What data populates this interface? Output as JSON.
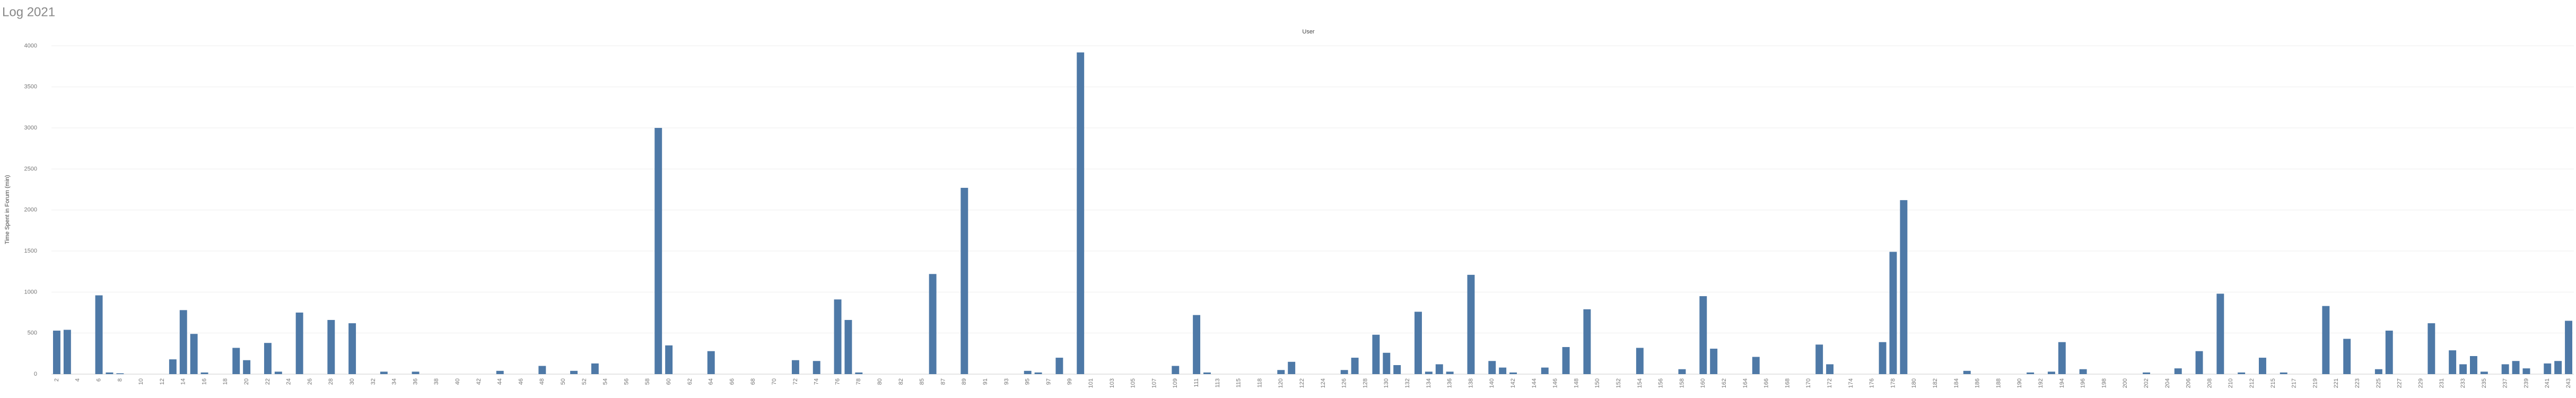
{
  "chart_data": {
    "type": "bar",
    "title": "Log 2021",
    "subtitle": "User",
    "y_label": "Time Spent in Forum (min)",
    "color": "#4e79a7",
    "categories": [
      "2",
      null,
      "4",
      null,
      "6",
      null,
      "8",
      null,
      "10",
      null,
      "12",
      null,
      "14",
      null,
      "16",
      null,
      "18",
      null,
      "20",
      null,
      "22",
      null,
      "24",
      null,
      "26",
      null,
      "28",
      null,
      "30",
      null,
      "32",
      null,
      "34",
      null,
      "36",
      null,
      "38",
      null,
      "40",
      null,
      "42",
      null,
      "44",
      null,
      "46",
      null,
      "48",
      null,
      "50",
      null,
      "52",
      null,
      "54",
      null,
      "56",
      null,
      "58",
      null,
      "60",
      null,
      "62",
      null,
      "64",
      null,
      "66",
      null,
      "68",
      null,
      "70",
      null,
      "72",
      null,
      "74",
      null,
      "76",
      null,
      "78",
      null,
      "80",
      null,
      "82",
      null,
      "85",
      null,
      "87",
      null,
      "89",
      null,
      "91",
      null,
      "93",
      null,
      "95",
      null,
      "97",
      null,
      "99",
      null,
      "101",
      null,
      "103",
      null,
      "105",
      null,
      "107",
      null,
      "109",
      null,
      "111",
      null,
      "113",
      null,
      "115",
      null,
      "118",
      null,
      "120",
      null,
      "122",
      null,
      "124",
      null,
      "126",
      null,
      "128",
      null,
      "130",
      null,
      "132",
      null,
      "134",
      null,
      "136",
      null,
      "138",
      null,
      "140",
      null,
      "142",
      null,
      "144",
      null,
      "146",
      null,
      "148",
      null,
      "150",
      null,
      "152",
      null,
      "154",
      null,
      "156",
      null,
      "158",
      null,
      "160",
      null,
      "162",
      null,
      "164",
      null,
      "166",
      null,
      "168",
      null,
      "170",
      null,
      "172",
      null,
      "174",
      null,
      "176",
      null,
      "178",
      null,
      "180",
      null,
      "182",
      null,
      "184",
      null,
      "186",
      null,
      "188",
      null,
      "190",
      null,
      "192",
      null,
      "194",
      null,
      "196",
      null,
      "198",
      null,
      "200",
      null,
      "202",
      null,
      "204",
      null,
      "206",
      null,
      "208",
      null,
      "210",
      null,
      "212",
      null,
      "215",
      null,
      "217",
      null,
      "219",
      null,
      "221",
      null,
      "223",
      null,
      "225",
      null,
      "227",
      null,
      "229",
      null,
      "231",
      null,
      "233",
      null,
      "235",
      null,
      "237",
      null,
      "239",
      null,
      "241",
      null,
      "243"
    ],
    "values": [
      530,
      540,
      0,
      0,
      960,
      20,
      10,
      0,
      0,
      0,
      0,
      180,
      780,
      490,
      20,
      0,
      0,
      320,
      170,
      0,
      380,
      30,
      0,
      750,
      0,
      0,
      660,
      0,
      620,
      0,
      0,
      30,
      0,
      0,
      30,
      0,
      0,
      0,
      0,
      0,
      0,
      0,
      40,
      0,
      0,
      0,
      100,
      0,
      0,
      40,
      0,
      130,
      0,
      0,
      0,
      0,
      0,
      3000,
      350,
      0,
      0,
      0,
      280,
      0,
      0,
      0,
      0,
      0,
      0,
      0,
      170,
      0,
      160,
      0,
      910,
      660,
      20,
      0,
      0,
      0,
      0,
      0,
      0,
      1220,
      0,
      0,
      2270,
      0,
      0,
      0,
      0,
      0,
      40,
      20,
      0,
      200,
      0,
      3920,
      0,
      0,
      0,
      0,
      0,
      0,
      0,
      0,
      100,
      0,
      720,
      20,
      0,
      0,
      0,
      0,
      0,
      0,
      50,
      150,
      0,
      0,
      0,
      0,
      50,
      200,
      0,
      480,
      260,
      110,
      0,
      760,
      30,
      120,
      30,
      0,
      1210,
      0,
      160,
      80,
      20,
      0,
      0,
      80,
      0,
      330,
      0,
      790,
      0,
      0,
      0,
      0,
      320,
      0,
      0,
      0,
      60,
      0,
      950,
      310,
      0,
      0,
      0,
      210,
      0,
      0,
      0,
      0,
      0,
      360,
      120,
      0,
      0,
      0,
      0,
      390,
      1490,
      2120,
      0,
      0,
      0,
      0,
      0,
      40,
      0,
      0,
      0,
      0,
      0,
      20,
      0,
      30,
      390,
      0,
      60,
      0,
      0,
      0,
      0,
      0,
      20,
      0,
      0,
      70,
      0,
      280,
      0,
      980,
      0,
      20,
      0,
      200,
      0,
      20,
      0,
      0,
      0,
      830,
      0,
      430,
      0,
      0,
      60,
      530,
      0,
      0,
      0,
      620,
      0,
      290,
      120,
      220,
      30,
      0,
      120,
      160,
      70,
      0,
      130,
      160,
      650
    ],
    "ylim": [
      0,
      4300
    ],
    "yticks": [
      0,
      500,
      1000,
      1500,
      2000,
      2500,
      3000,
      3500,
      4000
    ],
    "grid": true
  }
}
